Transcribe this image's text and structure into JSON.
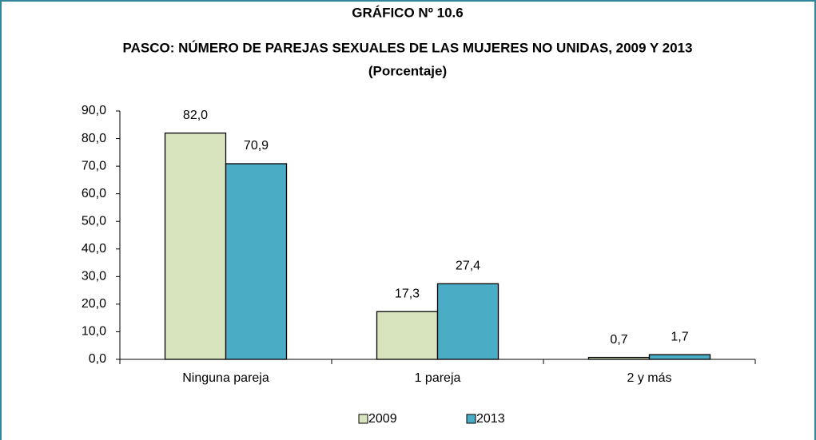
{
  "chart_data": {
    "type": "bar",
    "title": "GRÁFICO Nº 10.6",
    "subtitle": "PASCO: NÚMERO DE PAREJAS SEXUALES DE LAS MUJERES NO UNIDAS,  2009 Y  2013",
    "unit_label": "(Porcentaje)",
    "categories": [
      "Ninguna pareja",
      "1 pareja",
      "2 y más"
    ],
    "series": [
      {
        "name": "2009",
        "color": "#d7e4bd",
        "values": [
          82.0,
          17.3,
          0.7
        ],
        "value_labels": [
          "82,0",
          "17,3",
          "0,7"
        ]
      },
      {
        "name": "2013",
        "color": "#4bacc6",
        "values": [
          70.9,
          27.4,
          1.7
        ],
        "value_labels": [
          "70,9",
          "27,4",
          "1,7"
        ]
      }
    ],
    "ylim": [
      0,
      90
    ],
    "yticks": [
      {
        "value": 0,
        "label": "0,0"
      },
      {
        "value": 10,
        "label": "10,0"
      },
      {
        "value": 20,
        "label": "20,0"
      },
      {
        "value": 30,
        "label": "30,0"
      },
      {
        "value": 40,
        "label": "40,0"
      },
      {
        "value": 50,
        "label": "50,0"
      },
      {
        "value": 60,
        "label": "60,0"
      },
      {
        "value": 70,
        "label": "70,0"
      },
      {
        "value": 80,
        "label": "80,0"
      },
      {
        "value": 90,
        "label": "90,0"
      }
    ],
    "grid": false,
    "legend": "bottom"
  }
}
